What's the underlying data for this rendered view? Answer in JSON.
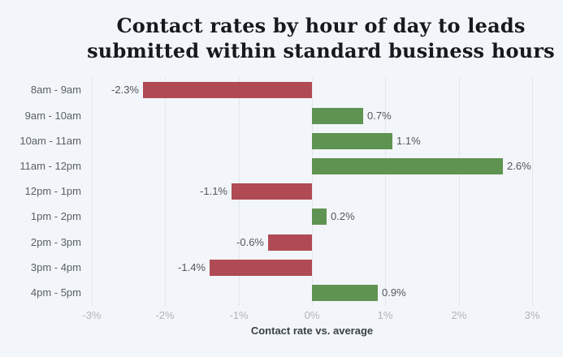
{
  "chart_data": {
    "type": "bar",
    "orientation": "horizontal",
    "title": "Contact rates by hour of day to leads submitted within standard business hours",
    "xlabel": "Contact rate vs. average",
    "categories": [
      "8am - 9am",
      "9am - 10am",
      "10am - 11am",
      "11am - 12pm",
      "12pm - 1pm",
      "1pm - 2pm",
      "2pm - 3pm",
      "3pm - 4pm",
      "4pm - 5pm"
    ],
    "values": [
      -2.3,
      0.7,
      1.1,
      2.6,
      -1.1,
      0.2,
      -0.6,
      -1.4,
      0.9
    ],
    "value_labels": [
      "-2.3%",
      "0.7%",
      "1.1%",
      "2.6%",
      "-1.1%",
      "0.2%",
      "-0.6%",
      "-1.4%",
      "0.9%"
    ],
    "xticks": [
      -3,
      -2,
      -1,
      0,
      1,
      2,
      3
    ],
    "xtick_labels": [
      "-3%",
      "-2%",
      "-1%",
      "0%",
      "1%",
      "2%",
      "3%"
    ],
    "xlim": [
      -3,
      3
    ],
    "grid": true,
    "legend": false,
    "colors": {
      "positive": "#5f9351",
      "negative": "#b04a54",
      "background": "#f2f5f9",
      "gridline": "#e3e7eb"
    }
  }
}
